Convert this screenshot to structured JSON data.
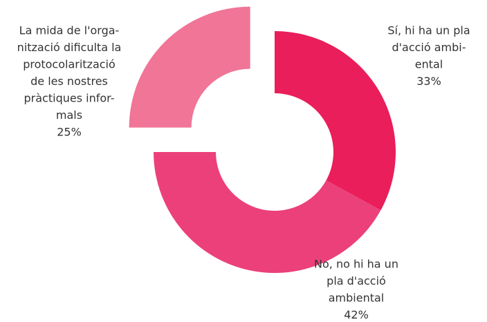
{
  "chart_data": {
    "type": "donut",
    "categories": [
      [
        "Sí, hi ha un pla",
        "d'acció ambi-",
        "ental"
      ],
      [
        "No, no hi ha un",
        "pla d'acció",
        "ambiental"
      ],
      [
        "La mida de l'orga-",
        "nització dificulta la",
        "protocolarització",
        "de les nostres",
        "pràctiques infor-",
        "mals"
      ]
    ],
    "values": [
      33,
      42,
      25
    ],
    "value_labels": [
      "33%",
      "42%",
      "25%"
    ],
    "colors": [
      "#e91e5a",
      "#ec407a",
      "#f07597"
    ],
    "explode": [
      false,
      false,
      true
    ]
  }
}
